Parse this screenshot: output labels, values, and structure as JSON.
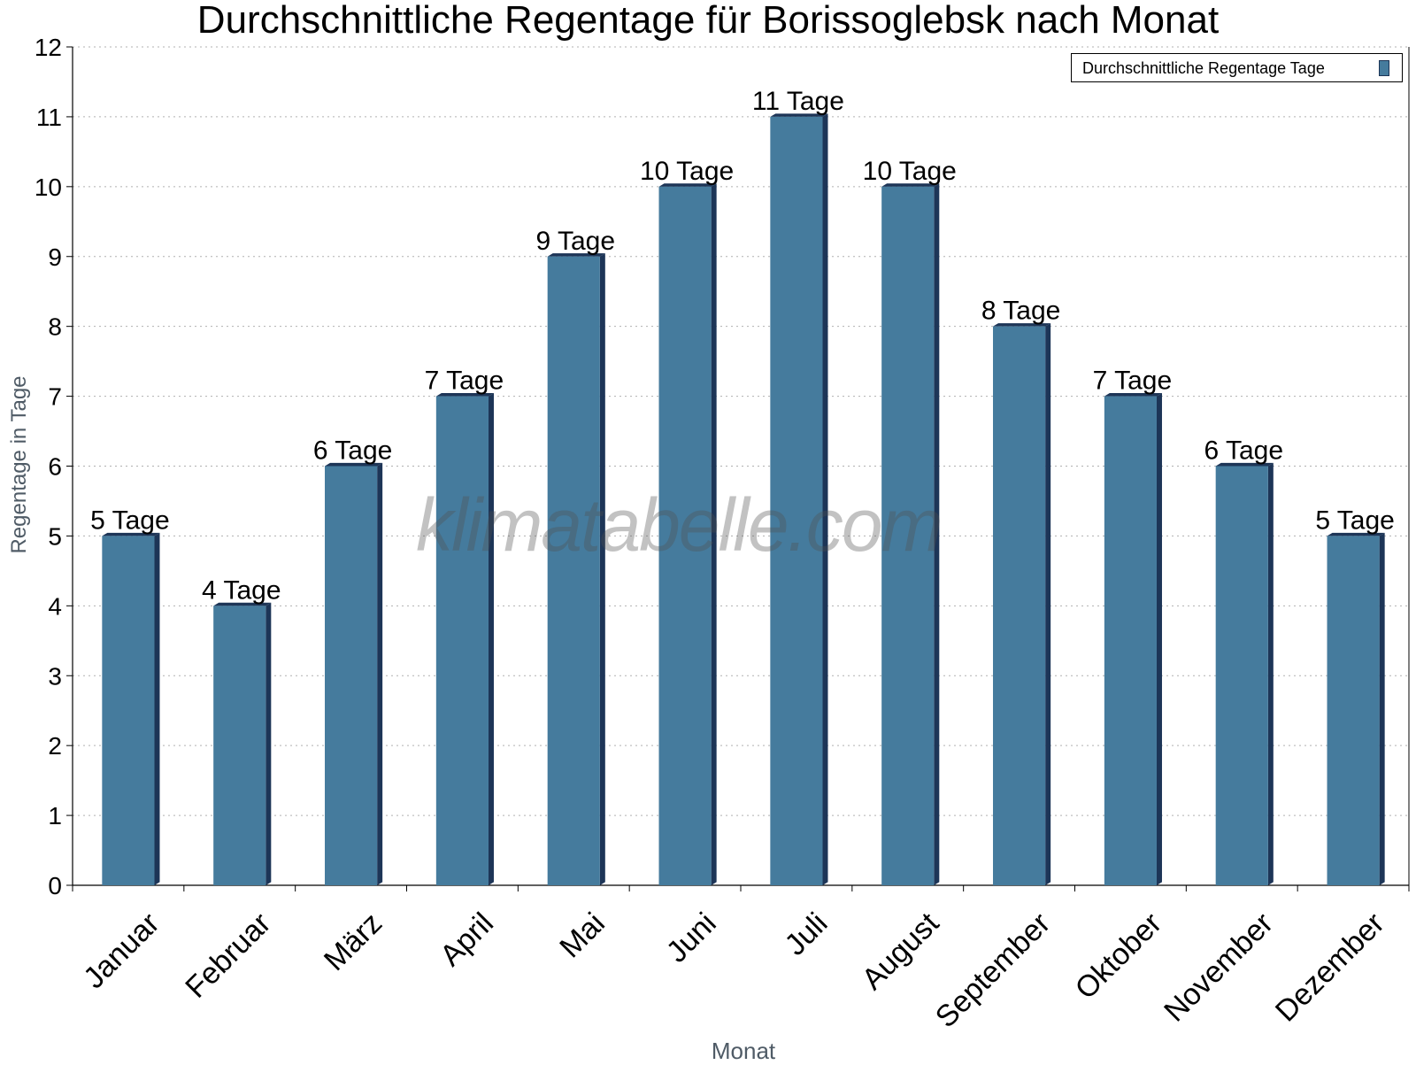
{
  "chart_data": {
    "type": "bar",
    "title": "Durchschnittliche Regentage für Borissoglebsk nach Monat",
    "xlabel": "Monat",
    "ylabel": "Regentage in Tage",
    "ylim": [
      0,
      12
    ],
    "yticks": [
      "0",
      "1",
      "2",
      "3",
      "4",
      "5",
      "6",
      "7",
      "8",
      "9",
      "10",
      "11",
      "12"
    ],
    "categories": [
      "Januar",
      "Februar",
      "März",
      "April",
      "Mai",
      "Juni",
      "Juli",
      "August",
      "September",
      "Oktober",
      "November",
      "Dezember"
    ],
    "series": [
      {
        "name": "Durchschnittliche Regentage Tage",
        "values": [
          5,
          4,
          6,
          7,
          9,
          10,
          11,
          10,
          8,
          7,
          6,
          5
        ]
      }
    ],
    "data_labels": [
      "5 Tage",
      "4 Tage",
      "6 Tage",
      "7 Tage",
      "9 Tage",
      "10 Tage",
      "11 Tage",
      "10 Tage",
      "8 Tage",
      "7 Tage",
      "6 Tage",
      "5 Tage"
    ],
    "grid": true,
    "legend_position": "top-right",
    "colors": {
      "bar": "#457b9d",
      "bar_side": "#1d3557",
      "grid": "#b0b0b0"
    }
  },
  "watermark": "klimatabelle.com"
}
